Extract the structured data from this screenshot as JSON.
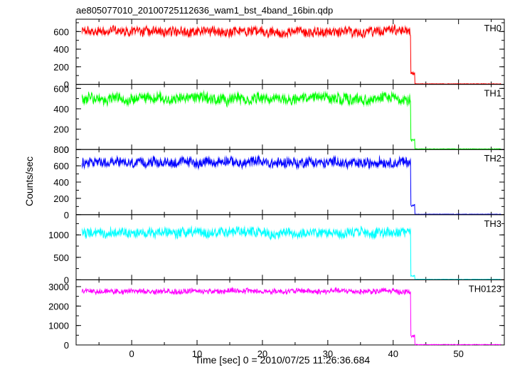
{
  "chart_data": {
    "type": "line",
    "title": "ae805077010_20100725112636_wam1_bst_4band_16bin.qdp",
    "xlabel": "Time [sec] 0 = 2010/07/25 11:26:36.684",
    "ylabel": "Counts/sec",
    "xlim": [
      -8.5,
      57
    ],
    "x_ticks": [
      0,
      10,
      20,
      30,
      40,
      50
    ],
    "x_tick_labels": [
      "0",
      "10",
      "20",
      "30",
      "40",
      "50"
    ],
    "drop_time": 43,
    "grid": false,
    "panels": [
      {
        "name": "TH0",
        "color": "#ff0000",
        "ylim": [
          0,
          740
        ],
        "y_ticks": [
          0,
          200,
          400,
          600
        ],
        "y_tick_labels": [
          "0",
          "200",
          "400",
          "600"
        ],
        "pre_level": 600,
        "noise": 60,
        "mid_value": 120,
        "post_level": 5
      },
      {
        "name": "TH1",
        "color": "#00ff00",
        "ylim": [
          0,
          640
        ],
        "y_ticks": [
          0,
          200,
          400,
          600
        ],
        "y_tick_labels": [
          "0",
          "200",
          "400",
          "600"
        ],
        "pre_level": 500,
        "noise": 60,
        "mid_value": 90,
        "post_level": 5
      },
      {
        "name": "TH2",
        "color": "#0000ff",
        "ylim": [
          0,
          800
        ],
        "y_ticks": [
          0,
          200,
          400,
          600,
          800
        ],
        "y_tick_labels": [
          "0",
          "200",
          "400",
          "600",
          "800"
        ],
        "pre_level": 640,
        "noise": 70,
        "mid_value": 110,
        "post_level": 5
      },
      {
        "name": "TH3",
        "color": "#00ffff",
        "ylim": [
          0,
          1450
        ],
        "y_ticks": [
          0,
          500,
          1000
        ],
        "y_tick_labels": [
          "0",
          "500",
          "1000"
        ],
        "pre_level": 1050,
        "noise": 120,
        "mid_value": 90,
        "post_level": 10
      },
      {
        "name": "TH0123",
        "color": "#ff00ff",
        "ylim": [
          0,
          3350
        ],
        "y_ticks": [
          0,
          1000,
          2000,
          3000
        ],
        "y_tick_labels": [
          "0",
          "1000",
          "2000",
          "3000"
        ],
        "pre_level": 2770,
        "noise": 150,
        "mid_value": 450,
        "post_level": 20
      }
    ]
  }
}
